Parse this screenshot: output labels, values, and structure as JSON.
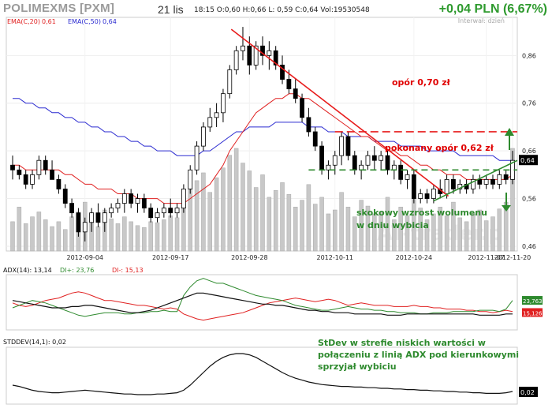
{
  "header": {
    "title": "POLIMEXMS [PXM]",
    "date": "21 lis",
    "ohlc": "18:15  O:0,60  H:0,66  L: 0,59  C:0,64  Vol:19530548",
    "change": "+0,04 PLN (6,67%)",
    "interval": "Interwał: dzień"
  },
  "watermark": "AT-trader.pl",
  "colors": {
    "ema20": "#e02020",
    "ema50": "#2a2ad0",
    "adx": "#111111",
    "di_plus": "#2e8a2e",
    "di_minus": "#e02020",
    "trend": "#e81c1c",
    "support": "#2e8a2e",
    "annotation_red": "#e00000",
    "annotation_green": "#2e8a2e",
    "candle_up": "#ffffff",
    "candle_down": "#000000",
    "volume": "#c8c8c8"
  },
  "chart_data": [
    {
      "type": "candlestick",
      "legend": [
        "EMA(C,20) 0,61",
        "EMA(C,50) 0,64"
      ],
      "ylim": [
        0.45,
        0.94
      ],
      "y_ticks": [
        "0,86",
        "0,76",
        "0,66",
        "0,56",
        "0,46"
      ],
      "last_price_label": "0,64",
      "x_tick_labels": [
        "2012-09-04",
        "2012-09-17",
        "2012-09-28",
        "2012-10-11",
        "2012-10-24",
        "2012-11-07",
        "2012-11-20"
      ],
      "ohlc": [
        [
          0.63,
          0.65,
          0.6,
          0.62
        ],
        [
          0.62,
          0.63,
          0.6,
          0.61
        ],
        [
          0.61,
          0.62,
          0.58,
          0.59
        ],
        [
          0.59,
          0.62,
          0.58,
          0.61
        ],
        [
          0.61,
          0.65,
          0.6,
          0.64
        ],
        [
          0.64,
          0.65,
          0.61,
          0.62
        ],
        [
          0.62,
          0.64,
          0.6,
          0.6
        ],
        [
          0.6,
          0.61,
          0.57,
          0.58
        ],
        [
          0.58,
          0.59,
          0.54,
          0.55
        ],
        [
          0.55,
          0.56,
          0.52,
          0.53
        ],
        [
          0.53,
          0.54,
          0.48,
          0.49
        ],
        [
          0.49,
          0.52,
          0.47,
          0.51
        ],
        [
          0.51,
          0.54,
          0.49,
          0.53
        ],
        [
          0.53,
          0.55,
          0.5,
          0.51
        ],
        [
          0.51,
          0.54,
          0.49,
          0.53
        ],
        [
          0.53,
          0.55,
          0.52,
          0.54
        ],
        [
          0.54,
          0.56,
          0.53,
          0.55
        ],
        [
          0.55,
          0.58,
          0.53,
          0.57
        ],
        [
          0.57,
          0.58,
          0.54,
          0.55
        ],
        [
          0.55,
          0.57,
          0.53,
          0.56
        ],
        [
          0.56,
          0.57,
          0.53,
          0.54
        ],
        [
          0.54,
          0.55,
          0.51,
          0.52
        ],
        [
          0.52,
          0.54,
          0.51,
          0.53
        ],
        [
          0.53,
          0.55,
          0.52,
          0.54
        ],
        [
          0.54,
          0.56,
          0.52,
          0.53
        ],
        [
          0.53,
          0.55,
          0.52,
          0.54
        ],
        [
          0.54,
          0.59,
          0.53,
          0.58
        ],
        [
          0.58,
          0.63,
          0.57,
          0.62
        ],
        [
          0.62,
          0.68,
          0.61,
          0.67
        ],
        [
          0.67,
          0.72,
          0.66,
          0.71
        ],
        [
          0.71,
          0.75,
          0.7,
          0.73
        ],
        [
          0.73,
          0.76,
          0.71,
          0.74
        ],
        [
          0.74,
          0.79,
          0.72,
          0.78
        ],
        [
          0.78,
          0.84,
          0.77,
          0.83
        ],
        [
          0.83,
          0.88,
          0.82,
          0.87
        ],
        [
          0.87,
          0.92,
          0.85,
          0.88
        ],
        [
          0.88,
          0.9,
          0.82,
          0.84
        ],
        [
          0.84,
          0.89,
          0.83,
          0.88
        ],
        [
          0.88,
          0.9,
          0.84,
          0.86
        ],
        [
          0.86,
          0.89,
          0.83,
          0.87
        ],
        [
          0.87,
          0.88,
          0.83,
          0.84
        ],
        [
          0.84,
          0.86,
          0.8,
          0.81
        ],
        [
          0.81,
          0.83,
          0.78,
          0.79
        ],
        [
          0.79,
          0.81,
          0.76,
          0.77
        ],
        [
          0.77,
          0.78,
          0.72,
          0.73
        ],
        [
          0.73,
          0.75,
          0.69,
          0.7
        ],
        [
          0.7,
          0.71,
          0.66,
          0.67
        ],
        [
          0.67,
          0.68,
          0.61,
          0.62
        ],
        [
          0.62,
          0.64,
          0.6,
          0.63
        ],
        [
          0.63,
          0.66,
          0.61,
          0.65
        ],
        [
          0.65,
          0.7,
          0.63,
          0.69
        ],
        [
          0.69,
          0.7,
          0.64,
          0.65
        ],
        [
          0.65,
          0.66,
          0.61,
          0.62
        ],
        [
          0.62,
          0.64,
          0.6,
          0.63
        ],
        [
          0.63,
          0.66,
          0.62,
          0.65
        ],
        [
          0.65,
          0.67,
          0.62,
          0.64
        ],
        [
          0.64,
          0.66,
          0.62,
          0.65
        ],
        [
          0.65,
          0.66,
          0.61,
          0.62
        ],
        [
          0.62,
          0.64,
          0.6,
          0.63
        ],
        [
          0.63,
          0.64,
          0.59,
          0.6
        ],
        [
          0.6,
          0.62,
          0.58,
          0.61
        ],
        [
          0.61,
          0.62,
          0.55,
          0.56
        ],
        [
          0.56,
          0.58,
          0.55,
          0.57
        ],
        [
          0.57,
          0.58,
          0.55,
          0.56
        ],
        [
          0.56,
          0.59,
          0.55,
          0.58
        ],
        [
          0.58,
          0.6,
          0.56,
          0.57
        ],
        [
          0.57,
          0.61,
          0.56,
          0.6
        ],
        [
          0.6,
          0.61,
          0.57,
          0.58
        ],
        [
          0.58,
          0.6,
          0.57,
          0.59
        ],
        [
          0.59,
          0.6,
          0.57,
          0.58
        ],
        [
          0.58,
          0.61,
          0.57,
          0.6
        ],
        [
          0.6,
          0.61,
          0.58,
          0.59
        ],
        [
          0.59,
          0.61,
          0.58,
          0.6
        ],
        [
          0.6,
          0.61,
          0.58,
          0.59
        ],
        [
          0.59,
          0.62,
          0.58,
          0.61
        ],
        [
          0.61,
          0.62,
          0.59,
          0.6
        ],
        [
          0.6,
          0.66,
          0.59,
          0.64
        ]
      ],
      "volume": [
        3.0,
        4.5,
        2.8,
        3.5,
        4.0,
        3.2,
        2.5,
        3.0,
        2.2,
        3.5,
        4.0,
        5.0,
        3.8,
        2.5,
        4.2,
        3.3,
        2.8,
        3.5,
        3.0,
        2.6,
        2.4,
        3.0,
        2.9,
        3.2,
        3.6,
        3.4,
        4.8,
        6.5,
        7.2,
        8.0,
        6.0,
        7.5,
        8.5,
        9.8,
        10.5,
        9.0,
        8.2,
        6.5,
        7.8,
        5.5,
        6.2,
        7.0,
        5.8,
        4.5,
        5.2,
        6.8,
        4.8,
        5.5,
        3.8,
        4.2,
        6.0,
        4.5,
        3.5,
        5.2,
        4.6,
        3.8,
        4.0,
        5.5,
        3.2,
        4.5,
        3.6,
        6.0,
        4.4,
        3.2,
        3.8,
        4.5,
        3.6,
        5.0,
        3.4,
        3.0,
        3.8,
        4.2,
        3.1,
        3.5,
        4.3,
        5.0,
        10.5
      ],
      "ema20": [
        0.63,
        0.63,
        0.62,
        0.62,
        0.62,
        0.62,
        0.62,
        0.62,
        0.61,
        0.61,
        0.6,
        0.59,
        0.59,
        0.58,
        0.58,
        0.58,
        0.57,
        0.57,
        0.57,
        0.56,
        0.56,
        0.56,
        0.56,
        0.55,
        0.55,
        0.55,
        0.55,
        0.56,
        0.57,
        0.58,
        0.59,
        0.61,
        0.63,
        0.66,
        0.68,
        0.7,
        0.72,
        0.74,
        0.75,
        0.76,
        0.77,
        0.77,
        0.78,
        0.78,
        0.77,
        0.77,
        0.76,
        0.75,
        0.74,
        0.73,
        0.72,
        0.71,
        0.7,
        0.69,
        0.69,
        0.68,
        0.67,
        0.66,
        0.66,
        0.65,
        0.65,
        0.64,
        0.63,
        0.63,
        0.62,
        0.62,
        0.61,
        0.61,
        0.61,
        0.6,
        0.6,
        0.6,
        0.6,
        0.6,
        0.6,
        0.6,
        0.61
      ],
      "ema50": [
        0.77,
        0.77,
        0.76,
        0.76,
        0.75,
        0.75,
        0.74,
        0.74,
        0.73,
        0.73,
        0.72,
        0.72,
        0.71,
        0.71,
        0.7,
        0.7,
        0.69,
        0.69,
        0.68,
        0.68,
        0.67,
        0.67,
        0.66,
        0.66,
        0.66,
        0.65,
        0.65,
        0.65,
        0.65,
        0.66,
        0.66,
        0.67,
        0.68,
        0.69,
        0.7,
        0.7,
        0.71,
        0.71,
        0.71,
        0.71,
        0.72,
        0.72,
        0.72,
        0.72,
        0.72,
        0.71,
        0.71,
        0.71,
        0.7,
        0.7,
        0.7,
        0.69,
        0.69,
        0.69,
        0.69,
        0.68,
        0.68,
        0.68,
        0.68,
        0.67,
        0.67,
        0.67,
        0.67,
        0.66,
        0.66,
        0.66,
        0.66,
        0.66,
        0.65,
        0.65,
        0.65,
        0.65,
        0.65,
        0.65,
        0.64,
        0.64,
        0.64
      ],
      "annotations": {
        "resistance_070": "opór 0,70 zł",
        "resistance_062": "pokonany opór 0,62 zł",
        "volume_note": "skokowy wzrost wolumenu\nw dniu wybicia"
      }
    },
    {
      "type": "line",
      "labels": [
        "ADX(14): 13,14",
        "DI+: 23,76",
        "DI-: 15,13"
      ],
      "right_labels": [
        "23,763",
        "15,126"
      ],
      "adx": [
        24,
        23,
        22,
        21,
        20,
        19,
        18,
        18,
        18,
        19,
        19,
        20,
        20,
        19,
        18,
        17,
        16,
        15,
        14,
        14,
        15,
        16,
        18,
        20,
        22,
        24,
        26,
        28,
        30,
        30,
        29,
        28,
        27,
        26,
        25,
        24,
        23,
        22,
        21,
        21,
        20,
        20,
        19,
        18,
        17,
        16,
        16,
        15,
        15,
        14,
        14,
        14,
        13,
        13,
        13,
        13,
        13,
        12,
        12,
        12,
        13,
        13,
        13,
        13,
        13,
        13,
        13,
        13,
        13,
        13,
        13,
        12,
        12,
        12,
        12,
        13,
        13
      ],
      "di_plus": [
        18,
        20,
        22,
        24,
        23,
        22,
        20,
        18,
        16,
        14,
        12,
        11,
        12,
        13,
        14,
        14,
        14,
        13,
        13,
        14,
        14,
        15,
        15,
        16,
        15,
        15,
        28,
        35,
        40,
        42,
        40,
        38,
        38,
        36,
        34,
        32,
        30,
        28,
        27,
        26,
        25,
        24,
        22,
        20,
        19,
        18,
        17,
        16,
        16,
        17,
        18,
        19,
        18,
        17,
        17,
        16,
        16,
        15,
        15,
        14,
        14,
        14,
        13,
        13,
        14,
        14,
        14,
        15,
        15,
        15,
        15,
        16,
        16,
        16,
        15,
        17,
        24
      ],
      "di_minus": [
        22,
        20,
        19,
        20,
        22,
        24,
        25,
        26,
        28,
        30,
        31,
        30,
        28,
        26,
        24,
        24,
        23,
        22,
        21,
        20,
        20,
        19,
        18,
        17,
        18,
        17,
        13,
        11,
        9,
        8,
        9,
        10,
        11,
        12,
        13,
        14,
        16,
        18,
        20,
        22,
        23,
        24,
        25,
        26,
        25,
        24,
        23,
        24,
        25,
        24,
        22,
        20,
        21,
        22,
        21,
        20,
        20,
        20,
        19,
        19,
        19,
        20,
        19,
        19,
        18,
        18,
        17,
        17,
        17,
        16,
        16,
        15,
        15,
        14,
        15,
        16,
        15
      ]
    },
    {
      "type": "line",
      "labels": [
        "STDDEV(14,1): 0,02"
      ],
      "right_label": "0,02",
      "stddev": [
        0.03,
        0.028,
        0.025,
        0.022,
        0.02,
        0.019,
        0.018,
        0.018,
        0.019,
        0.02,
        0.021,
        0.022,
        0.021,
        0.02,
        0.019,
        0.018,
        0.017,
        0.016,
        0.016,
        0.015,
        0.015,
        0.015,
        0.016,
        0.016,
        0.017,
        0.018,
        0.022,
        0.03,
        0.04,
        0.05,
        0.06,
        0.068,
        0.074,
        0.078,
        0.08,
        0.08,
        0.078,
        0.074,
        0.068,
        0.062,
        0.056,
        0.05,
        0.045,
        0.041,
        0.038,
        0.035,
        0.033,
        0.031,
        0.03,
        0.029,
        0.028,
        0.028,
        0.027,
        0.027,
        0.026,
        0.026,
        0.025,
        0.025,
        0.024,
        0.024,
        0.023,
        0.023,
        0.022,
        0.022,
        0.021,
        0.021,
        0.02,
        0.02,
        0.019,
        0.019,
        0.018,
        0.018,
        0.017,
        0.017,
        0.017,
        0.018,
        0.02
      ],
      "annotation": "StDev w strefie niskich wartości w\npołączeniu z linią ADX pod kierunkowymi\nsprzyjał wybiciu"
    }
  ]
}
